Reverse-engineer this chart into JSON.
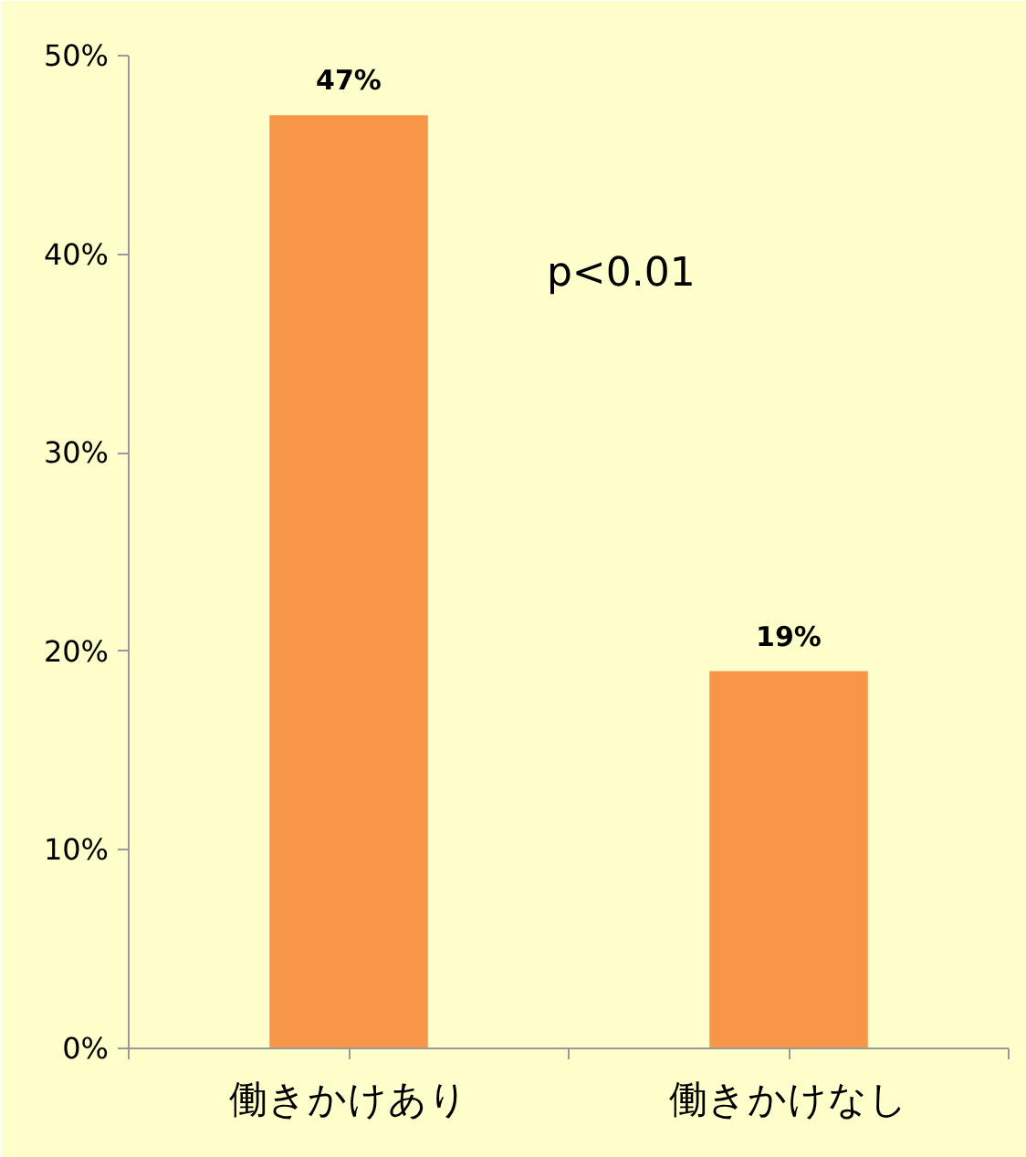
{
  "chart_data": {
    "type": "bar",
    "categories": [
      "働きかけあり",
      "働きかけなし"
    ],
    "values": [
      47,
      19
    ],
    "value_labels": [
      "47%",
      "19%"
    ],
    "color": "#f79646",
    "ylim": [
      0,
      50
    ],
    "yticks": [
      {
        "value": 0,
        "label": "0%"
      },
      {
        "value": 10,
        "label": "10%"
      },
      {
        "value": 20,
        "label": "20%"
      },
      {
        "value": 30,
        "label": "30%"
      },
      {
        "value": 40,
        "label": "40%"
      },
      {
        "value": 50,
        "label": "50%"
      }
    ],
    "annotations": [
      "p<0.01"
    ],
    "grid": false
  }
}
